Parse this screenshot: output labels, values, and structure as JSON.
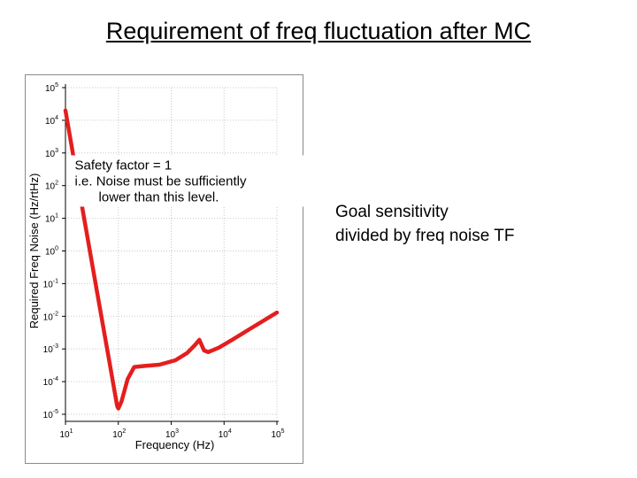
{
  "title": "Requirement of freq fluctuation after MC",
  "note": {
    "lines": [
      "Goal sensitivity",
      "divided by freq noise TF"
    ]
  },
  "chart_data": {
    "type": "line",
    "xlabel": "Frequency (Hz)",
    "ylabel": "Required Freq Noise (Hz/rtHz)",
    "x_scale": "log",
    "y_scale": "log",
    "xlim": [
      10,
      100000
    ],
    "ylim": [
      1e-05,
      100000
    ],
    "x_ticks": [
      {
        "value": 10,
        "base": "10",
        "exp": "1"
      },
      {
        "value": 100,
        "base": "10",
        "exp": "2"
      },
      {
        "value": 1000,
        "base": "10",
        "exp": "3"
      },
      {
        "value": 10000,
        "base": "10",
        "exp": "4"
      },
      {
        "value": 100000,
        "base": "10",
        "exp": "5"
      }
    ],
    "y_ticks": [
      {
        "value": 100000,
        "base": "10",
        "exp": "5"
      },
      {
        "value": 10000,
        "base": "10",
        "exp": "4"
      },
      {
        "value": 1000,
        "base": "10",
        "exp": "3"
      },
      {
        "value": 100,
        "base": "10",
        "exp": "2"
      },
      {
        "value": 10,
        "base": "10",
        "exp": "1"
      },
      {
        "value": 1,
        "base": "10",
        "exp": "0"
      },
      {
        "value": 0.1,
        "base": "10",
        "exp": "-1"
      },
      {
        "value": 0.01,
        "base": "10",
        "exp": "-2"
      },
      {
        "value": 0.001,
        "base": "10",
        "exp": "-3"
      },
      {
        "value": 0.0001,
        "base": "10",
        "exp": "-4"
      },
      {
        "value": 1e-05,
        "base": "10",
        "exp": "-5"
      }
    ],
    "grid": true,
    "series": [
      {
        "color": "#e41e1e",
        "points": [
          [
            10,
            20000
          ],
          [
            20,
            30
          ],
          [
            40,
            0.05
          ],
          [
            70,
            0.0003
          ],
          [
            95,
            1.8e-05
          ],
          [
            100,
            1.5e-05
          ],
          [
            115,
            2.5e-05
          ],
          [
            150,
            0.00012
          ],
          [
            200,
            0.00028
          ],
          [
            300,
            0.0003
          ],
          [
            600,
            0.00033
          ],
          [
            1200,
            0.00045
          ],
          [
            2000,
            0.00075
          ],
          [
            2800,
            0.0013
          ],
          [
            3400,
            0.0019
          ],
          [
            3700,
            0.0014
          ],
          [
            4200,
            0.0009
          ],
          [
            5000,
            0.0008
          ],
          [
            8000,
            0.0011
          ],
          [
            15000,
            0.002
          ],
          [
            30000,
            0.004
          ],
          [
            100000,
            0.013
          ]
        ]
      }
    ],
    "annotation": {
      "lines": [
        "Safety factor = 1",
        "i.e. Noise must be sufficiently",
        "lower than this level."
      ],
      "x": 15,
      "y": 400
    }
  }
}
